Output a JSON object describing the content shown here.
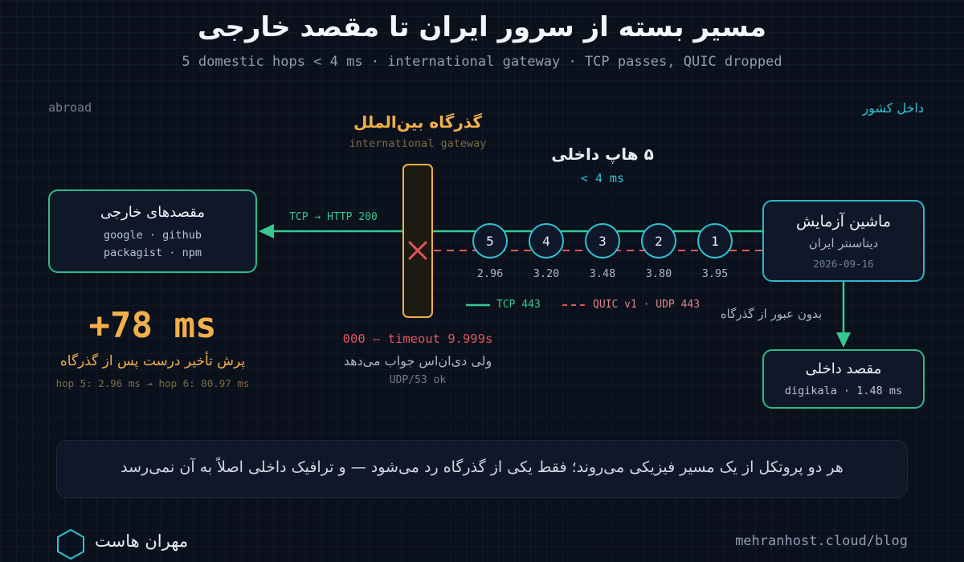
{
  "header": {
    "title": "مسیر بسته از سرور ایران تا مقصد خارجی",
    "subtitle": "5 domestic hops < 4 ms · international gateway · TCP passes, QUIC dropped"
  },
  "sides": {
    "abroad": "abroad",
    "domestic": "داخل کشور"
  },
  "gateway": {
    "title": "گذرگاه بین‌الملل",
    "subtitle": "international gateway",
    "timeout": "000 — timeout 9.999s",
    "dns_note": "ولی دی‌ان‌اس جواب می‌دهد",
    "udp_ok": "UDP/53 ok"
  },
  "hops": {
    "title": "۵ هاپ داخلی",
    "subtitle": "< 4 ms",
    "items": [
      {
        "label": "5",
        "latency": "2.96"
      },
      {
        "label": "4",
        "latency": "3.20"
      },
      {
        "label": "3",
        "latency": "3.48"
      },
      {
        "label": "2",
        "latency": "3.80"
      },
      {
        "label": "1",
        "latency": "3.95"
      }
    ]
  },
  "foreign_dest": {
    "title": "مقصدهای خارجی",
    "line1": "google · github",
    "line2": "packagist · npm"
  },
  "test_machine": {
    "title": "ماشین آزمایش",
    "subtitle": "دیتاسنتر ایران",
    "date": "2026-09-16"
  },
  "domestic_dest": {
    "title": "مقصد داخلی",
    "line1": "digikala · 1.48 ms",
    "via": "بدون عبور از گذرگاه"
  },
  "tcp_label": "TCP → HTTP 200",
  "legend": {
    "tcp": "TCP 443",
    "quic": "QUIC v1 · UDP 443"
  },
  "latency_jump": {
    "value": "+78 ms",
    "caption": "پرش تأخیر درست پس از گذرگاه",
    "detail": "hop 5: 2.96 ms → hop 6: 80.97 ms"
  },
  "summary": "هر دو پروتکل از یک مسیر فیزیکی می‌روند؛ فقط یکی از گذرگاه رد می‌شود — و ترافیک داخلی اصلاً به آن نمی‌رسد",
  "footer": {
    "brand": "مهران هاست",
    "url": "mehranhost.cloud/blog"
  },
  "colors": {
    "tcp": "#35c98f",
    "quic": "#e0565b",
    "gateway": "#f2b04a",
    "hop": "#2fc3d6"
  }
}
